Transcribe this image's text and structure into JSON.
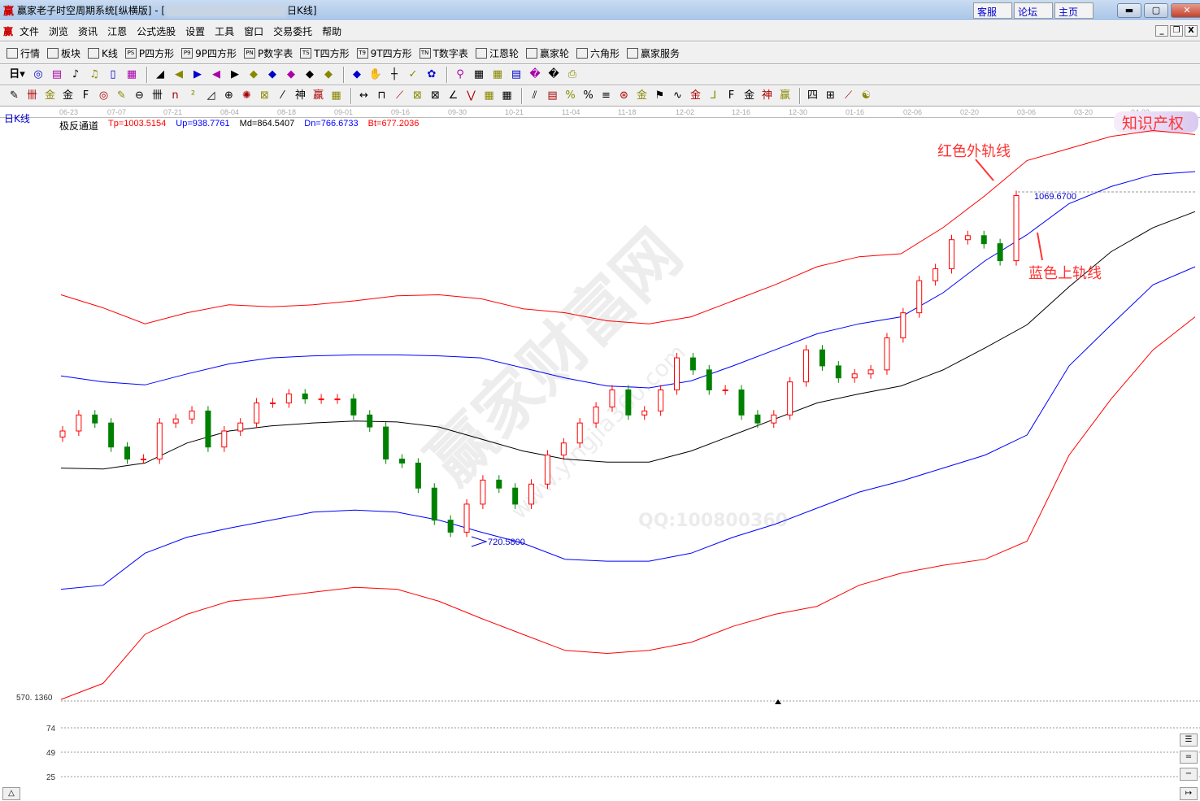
{
  "window": {
    "logo": "赢",
    "title": "赢家老子时空周期系统[纵横版] - [",
    "title_suffix": "日K线]",
    "links": [
      "客服",
      "论坛",
      "主页"
    ],
    "controls": [
      "minimize",
      "maximize",
      "close"
    ]
  },
  "menu": {
    "logo": "赢",
    "items": [
      "文件",
      "浏览",
      "资讯",
      "江恩",
      "公式选股",
      "设置",
      "工具",
      "窗口",
      "交易委托",
      "帮助"
    ]
  },
  "toolbar1": [
    {
      "icon": "grid-icon",
      "label": "行情"
    },
    {
      "icon": "blocks-icon",
      "label": "板块"
    },
    {
      "icon": "candles-icon",
      "label": "K线"
    },
    {
      "icon": "PS",
      "label": "P四方形"
    },
    {
      "icon": "P9",
      "label": "9P四方形"
    },
    {
      "icon": "PN",
      "label": "P数字表"
    },
    {
      "icon": "TS",
      "label": "T四方形"
    },
    {
      "icon": "T9",
      "label": "9T四方形"
    },
    {
      "icon": "TN",
      "label": "T数字表"
    },
    {
      "icon": "gann-wheel-icon",
      "label": "江恩轮"
    },
    {
      "icon": "big-wheel-icon",
      "label": "赢家轮"
    },
    {
      "icon": "hexagon-icon",
      "label": "六角形"
    },
    {
      "icon": "dollar-icon",
      "label": "赢家服务"
    }
  ],
  "toolbar2": {
    "period": "日",
    "icons": [
      "chart-type",
      "notes",
      "period-3",
      "period-9",
      "candle-style",
      "gann-box",
      "fan",
      "first",
      "last",
      "prev",
      "next",
      "nav-left",
      "nav-right",
      "nav-both",
      "nav-in",
      "nav-up",
      "nav-center",
      "hand",
      "crosshair",
      "line-tool",
      "flower",
      "link",
      "calendar",
      "calculator",
      "report",
      "save",
      "network",
      "print"
    ]
  },
  "toolbar3": {
    "icons": [
      "pen",
      "lines-2",
      "gold-1",
      "gold-2",
      "f-line",
      "spiral",
      "brush",
      "circle-lines",
      "lines-4",
      "n2",
      "triangle",
      "cross-circle",
      "web",
      "star-box",
      "angle",
      "shen",
      "ying",
      "numbers",
      "arrows",
      "box-line",
      "fan-red",
      "box-fan",
      "fan-box",
      "angle-fan",
      "v-line",
      "grid",
      "grid-2",
      "parallel",
      "table",
      "percent-z",
      "percent",
      "percent-lines",
      "gold-circle",
      "gold-lines",
      "candle-mark",
      "wave",
      "gold-red",
      "j-fan",
      "f-fan",
      "gold-fan",
      "shen-fan",
      "ying-fan",
      "four-fan",
      "grid-yellow",
      "trend",
      "yinyang",
      "infinity"
    ]
  },
  "date_axis": [
    "06-23",
    "07-07",
    "07-21",
    "08-04",
    "08-18",
    "09-01",
    "09-16",
    "09-30",
    "10-21",
    "11-04",
    "11-18",
    "12-02",
    "12-16",
    "12-30",
    "01-16",
    "02-06",
    "02-20",
    "03-06",
    "03-20",
    "04-03"
  ],
  "period_label": "日K线",
  "legend": {
    "name": "极反通道",
    "tp": "Tp=1003.5154",
    "up": "Up=938.7761",
    "md": "Md=864.5407",
    "dn": "Dn=766.6733",
    "bt": "Bt=677.2036"
  },
  "watermark_ip": "知识产权",
  "annotations": {
    "red_outer": "红色外轨线",
    "blue_upper": "蓝色上轨线",
    "high_label": "1069.6700",
    "low_label": "720.5800",
    "watermark": "赢家财富网",
    "watermark2": "QQ:100800360",
    "watermark3": "www.yingjia360.com"
  },
  "colors": {
    "up_candle": "#ff0000",
    "down_candle": "#008000",
    "tp": "#ff0000",
    "up": "#0000ff",
    "md": "#000000",
    "dn": "#0000ff",
    "bt": "#ff0000"
  },
  "chart_data": {
    "type": "candlestick",
    "ylim": [
      570.136,
      1135
    ],
    "y_bottom_label": "570. 1360",
    "series": [
      {
        "name": "Tp",
        "values": [
          967,
          954,
          938,
          949,
          957,
          955,
          957,
          961,
          966,
          967,
          963,
          953,
          949,
          941,
          938,
          945,
          961,
          977,
          995,
          1005,
          1008,
          1034,
          1066,
          1101,
          1113,
          1125,
          1131,
          1127
        ]
      },
      {
        "name": "Up",
        "values": [
          886,
          880,
          877,
          888,
          898,
          904,
          906,
          907,
          907,
          906,
          904,
          894,
          884,
          876,
          874,
          881,
          896,
          912,
          928,
          938,
          945,
          969,
          1001,
          1027,
          1058,
          1075,
          1087,
          1090
        ]
      },
      {
        "name": "Md",
        "values": [
          794,
          793,
          799,
          819,
          831,
          836,
          839,
          841,
          840,
          835,
          823,
          811,
          803,
          800,
          800,
          811,
          827,
          843,
          859,
          868,
          876,
          892,
          914,
          937,
          975,
          1010,
          1034,
          1050
        ]
      },
      {
        "name": "Dn",
        "values": [
          673,
          677,
          709,
          725,
          734,
          742,
          750,
          752,
          750,
          742,
          730,
          719,
          703,
          701,
          701,
          709,
          725,
          738,
          754,
          770,
          781,
          794,
          807,
          827,
          896,
          937,
          977,
          995
        ]
      },
      {
        "name": "Bt",
        "values": [
          563,
          579,
          628,
          648,
          661,
          665,
          670,
          675,
          673,
          661,
          644,
          628,
          612,
          609,
          612,
          620,
          636,
          648,
          656,
          677,
          689,
          697,
          703,
          721,
          807,
          863,
          912,
          945
        ]
      }
    ],
    "closes": [
      831,
      847,
      839,
      815,
      803,
      803,
      839,
      843,
      851,
      815,
      831,
      839,
      859,
      859,
      868,
      863,
      863,
      863,
      847,
      835,
      803,
      799,
      774,
      742,
      730,
      758,
      782,
      774,
      758,
      778,
      807,
      819,
      839,
      855,
      872,
      847,
      851,
      872,
      904,
      892,
      872,
      872,
      847,
      839,
      847,
      880,
      912,
      896,
      884,
      888,
      892,
      924,
      949,
      981,
      993,
      1022,
      1026,
      1018,
      1001,
      1066
    ],
    "high_mark": 1069.67,
    "low_mark": 720.58,
    "lower_panel_ticks": [
      "74",
      "49",
      "25"
    ]
  }
}
